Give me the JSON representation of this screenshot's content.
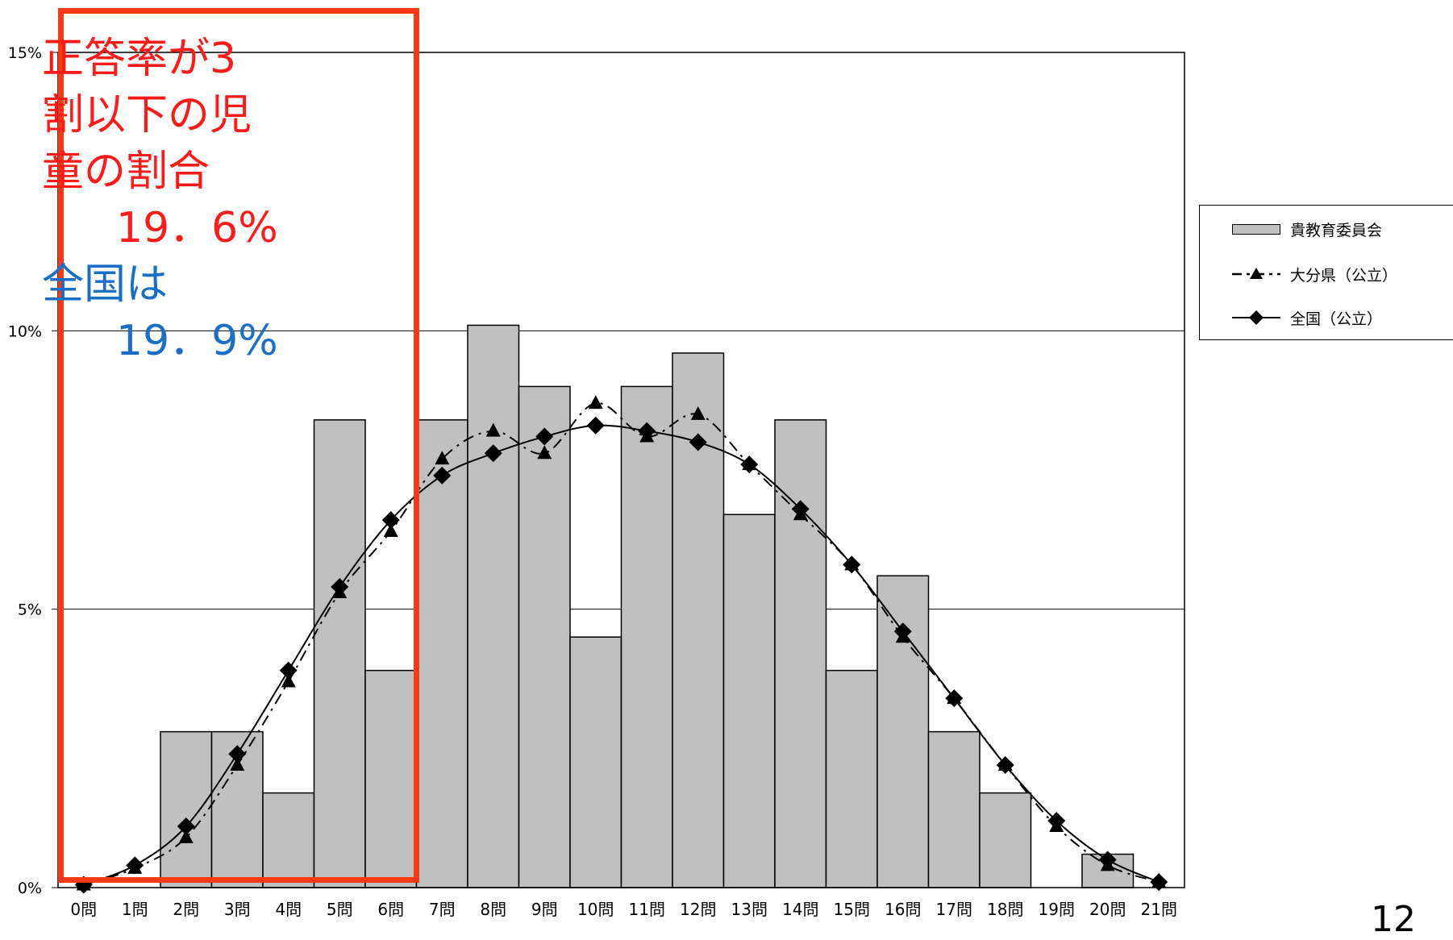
{
  "chart_data": {
    "type": "bar",
    "categories": [
      "0問",
      "1問",
      "2問",
      "3問",
      "4問",
      "5問",
      "6問",
      "7問",
      "8問",
      "9問",
      "10問",
      "11問",
      "12問",
      "13問",
      "14問",
      "15問",
      "16問",
      "17問",
      "18問",
      "19問",
      "20問",
      "21問"
    ],
    "series": [
      {
        "name": "貴教育委員会",
        "type": "bar",
        "values": [
          0,
          0,
          2.8,
          2.8,
          1.7,
          8.4,
          3.9,
          8.4,
          10.1,
          9.0,
          4.5,
          9.0,
          9.6,
          6.7,
          8.4,
          3.9,
          5.6,
          2.8,
          1.7,
          0,
          0.6,
          0
        ],
        "color": "#c0c0c0"
      },
      {
        "name": "大分県（公立）",
        "type": "line",
        "marker": "triangle",
        "dash": "dash-dot",
        "values": [
          0.05,
          0.35,
          0.9,
          2.2,
          3.7,
          5.3,
          6.4,
          7.7,
          8.2,
          7.8,
          8.7,
          8.1,
          8.5,
          7.6,
          6.7,
          5.8,
          4.5,
          3.4,
          2.2,
          1.1,
          0.4,
          0.1
        ],
        "color": "#000000"
      },
      {
        "name": "全国（公立）",
        "type": "line",
        "marker": "diamond",
        "dash": "solid",
        "values": [
          0.05,
          0.4,
          1.1,
          2.4,
          3.9,
          5.4,
          6.6,
          7.4,
          7.8,
          8.1,
          8.3,
          8.2,
          8.0,
          7.6,
          6.8,
          5.8,
          4.6,
          3.4,
          2.2,
          1.2,
          0.5,
          0.1
        ],
        "color": "#000000"
      }
    ],
    "ylim": [
      0,
      15
    ],
    "yticks": [
      0,
      5,
      10,
      15
    ],
    "ytick_labels": [
      "0%",
      "5%",
      "10%",
      "15%"
    ],
    "grid": true,
    "legend_position": "right",
    "title": "",
    "xlabel": "",
    "ylabel": ""
  },
  "legend": {
    "items": [
      "貴教育委員会",
      "大分県（公立）",
      "全国（公立）"
    ]
  },
  "annotation": {
    "red_lines": [
      "正答率が3",
      "割以下の児",
      "童の割合"
    ],
    "red_value": "19．6%",
    "blue_line": "全国は",
    "blue_value": "19．9%",
    "border_color": "#f53a14",
    "red_color": "#ff1a1a",
    "blue_color": "#1a6ec5"
  },
  "page_number": "12"
}
